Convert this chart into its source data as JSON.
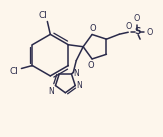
{
  "bg_color": "#fdf6ec",
  "line_color": "#2a2a4a",
  "lw": 1.1,
  "figsize": [
    1.63,
    1.37
  ],
  "dpi": 100,
  "xlim": [
    0,
    163
  ],
  "ylim": [
    0,
    137
  ]
}
